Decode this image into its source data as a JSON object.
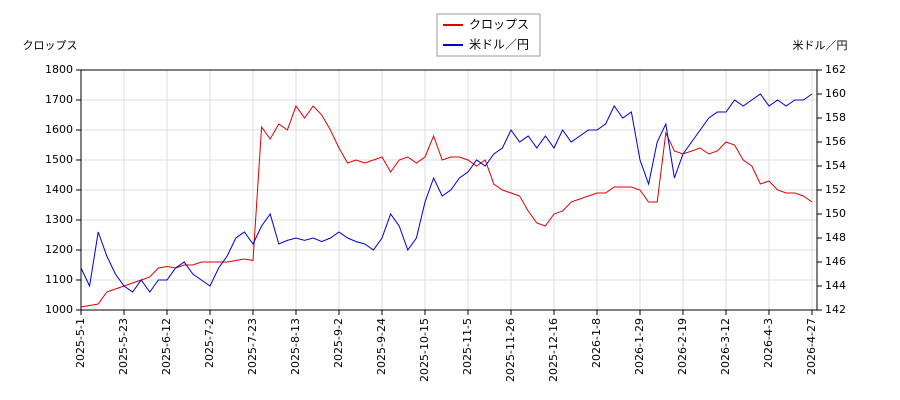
{
  "chart_data": {
    "type": "line",
    "y_label": "クロップス",
    "y2_label": "米ドル／円",
    "x": [
      "2025-5-1",
      null,
      null,
      null,
      null,
      "2025-5-23",
      null,
      null,
      null,
      null,
      "2025-6-12",
      null,
      null,
      null,
      null,
      "2025-7-2",
      null,
      null,
      null,
      null,
      "2025-7-23",
      null,
      null,
      null,
      null,
      "2025-8-13",
      null,
      null,
      null,
      null,
      "2025-9-2",
      null,
      null,
      null,
      null,
      "2025-9-24",
      null,
      null,
      null,
      null,
      "2025-10-15",
      null,
      null,
      null,
      null,
      "2025-11-5",
      null,
      null,
      null,
      null,
      "2025-11-26",
      null,
      null,
      null,
      null,
      "2025-12-16",
      null,
      null,
      null,
      null,
      "2026-1-8",
      null,
      null,
      null,
      null,
      "2026-1-29",
      null,
      null,
      null,
      null,
      "2026-2-19",
      null,
      null,
      null,
      null,
      "2026-3-12",
      null,
      null,
      null,
      null,
      "2026-4-3",
      null,
      null,
      null,
      null,
      "2026-4-27"
    ],
    "series": [
      {
        "name": "クロップス",
        "color": "#dd0000",
        "axis": "y",
        "values": [
          1010,
          1015,
          1020,
          1060,
          1070,
          1080,
          1090,
          1100,
          1110,
          1140,
          1145,
          1140,
          1150,
          1150,
          1160,
          1160,
          1160,
          1160,
          1165,
          1170,
          1165,
          1610,
          1570,
          1620,
          1600,
          1680,
          1640,
          1680,
          1650,
          1600,
          1540,
          1490,
          1500,
          1490,
          1500,
          1510,
          1460,
          1500,
          1510,
          1490,
          1510,
          1580,
          1500,
          1510,
          1510,
          1500,
          1480,
          1500,
          1420,
          1400,
          1390,
          1380,
          1330,
          1290,
          1280,
          1320,
          1330,
          1360,
          1370,
          1380,
          1390,
          1390,
          1410,
          1410,
          1410,
          1400,
          1360,
          1360,
          1590,
          1530,
          1520,
          1530,
          1540,
          1520,
          1530,
          1560,
          1550,
          1500,
          1480,
          1420,
          1430,
          1400,
          1390,
          1390,
          1380,
          1360
        ]
      },
      {
        "name": "米ドル／円",
        "color": "#0000cc",
        "axis": "y2",
        "values": [
          145.5,
          144,
          148.5,
          146.5,
          145,
          144,
          143.5,
          144.5,
          143.5,
          144.5,
          144.5,
          145.5,
          146,
          145,
          144.5,
          144,
          145.5,
          146.5,
          148,
          148.5,
          147.5,
          149,
          150,
          147.5,
          147.8,
          148,
          147.8,
          148,
          147.7,
          148,
          148.5,
          148,
          147.7,
          147.5,
          147,
          148,
          150,
          149,
          147,
          148,
          151,
          153,
          151.5,
          152,
          153,
          153.5,
          154.5,
          154,
          155,
          155.5,
          157,
          156,
          156.5,
          155.5,
          156.5,
          155.5,
          157,
          156,
          156.5,
          157,
          157,
          157.5,
          159,
          158,
          158.5,
          154.5,
          152.5,
          156,
          157.5,
          153,
          155,
          156,
          157,
          158,
          158.5,
          158.5,
          159.5,
          159,
          159.5,
          160,
          159,
          159.5,
          159,
          159.5,
          159.5,
          160
        ]
      }
    ],
    "ylim": [
      1000,
      1800
    ],
    "yticks": [
      1000,
      1100,
      1200,
      1300,
      1400,
      1500,
      1600,
      1700,
      1800
    ],
    "y2lim": [
      142,
      162
    ],
    "y2ticks": [
      142,
      144,
      146,
      148,
      150,
      152,
      154,
      156,
      158,
      160,
      162
    ],
    "grid": true,
    "legend": "top"
  }
}
